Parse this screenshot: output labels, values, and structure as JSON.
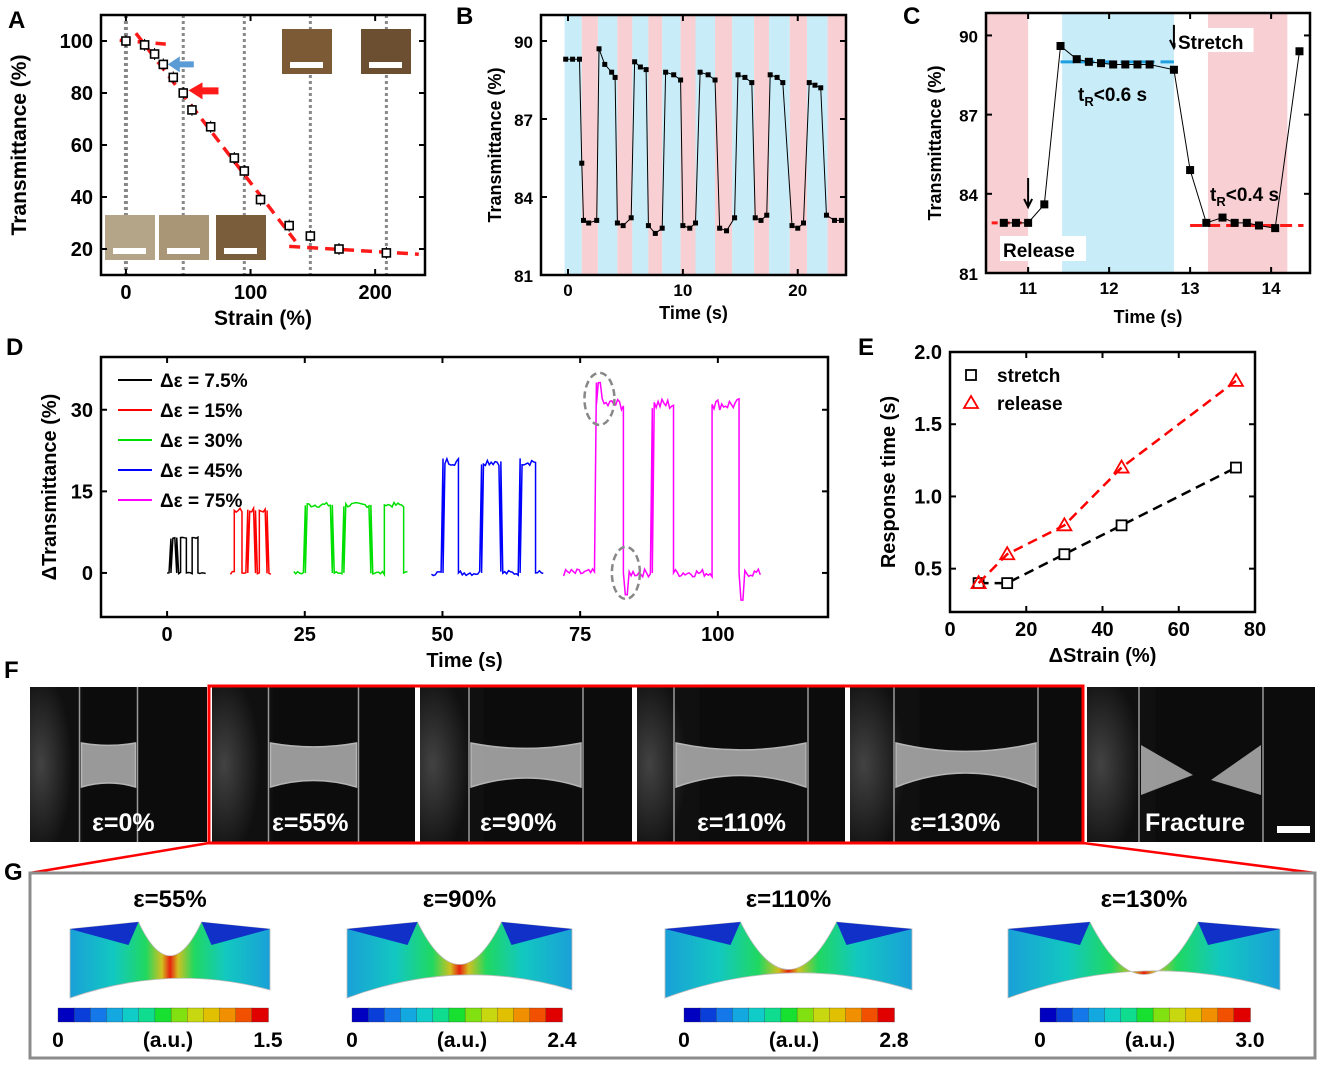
{
  "colors": {
    "red": "#ff1a1a",
    "blue_band": "#c8ecf8",
    "pink_band": "#f8cfd2",
    "magenta": "#ff00ff",
    "green": "#00e000",
    "blue": "#0000ff",
    "gray_frame": "#8c8c8c",
    "arrow_blue": "#5b9bd5"
  },
  "chart_data": [
    {
      "panel": "A",
      "type": "scatter",
      "xlabel": "Strain (%)",
      "ylabel": "Transmittance (%)",
      "xlim": [
        -20,
        240
      ],
      "ylim": [
        10,
        110
      ],
      "xticks": [
        0,
        100,
        200
      ],
      "yticks": [
        20,
        40,
        60,
        80,
        100
      ],
      "points": [
        [
          0,
          100
        ],
        [
          15,
          98.5
        ],
        [
          23,
          95
        ],
        [
          30,
          91
        ],
        [
          38,
          86
        ],
        [
          46,
          80
        ],
        [
          53,
          73.5
        ],
        [
          68,
          67
        ],
        [
          87,
          55
        ],
        [
          95,
          50
        ],
        [
          108,
          39
        ],
        [
          131,
          29
        ],
        [
          148,
          25
        ],
        [
          171,
          20
        ],
        [
          209,
          18.5
        ]
      ],
      "fit_lines": [
        [
          [
            -5,
            100.3
          ],
          [
            32,
            98.8
          ]
        ],
        [
          [
            8,
            103
          ],
          [
            136,
            23
          ]
        ],
        [
          [
            131,
            21
          ],
          [
            235,
            18
          ]
        ]
      ],
      "photo_strains": [
        0,
        46,
        95,
        148,
        209
      ]
    },
    {
      "panel": "B",
      "type": "line",
      "xlabel": "Time (s)",
      "ylabel": "Transmittance (%)",
      "xlim": [
        -2.35,
        24.2
      ],
      "ylim": [
        81,
        91
      ],
      "xticks": [
        0,
        10,
        20
      ],
      "yticks": [
        81,
        84,
        87,
        90
      ],
      "bands": [
        [
          -0.3,
          1.2,
          "blue"
        ],
        [
          1.2,
          2.6,
          "pink"
        ],
        [
          2.6,
          4.3,
          "blue"
        ],
        [
          4.3,
          5.6,
          "pink"
        ],
        [
          5.6,
          7.0,
          "blue"
        ],
        [
          7.0,
          8.2,
          "pink"
        ],
        [
          8.2,
          9.8,
          "blue"
        ],
        [
          9.8,
          11.1,
          "pink"
        ],
        [
          11.1,
          12.8,
          "blue"
        ],
        [
          12.8,
          14.3,
          "pink"
        ],
        [
          14.3,
          16.2,
          "blue"
        ],
        [
          16.2,
          17.5,
          "pink"
        ],
        [
          17.5,
          19.3,
          "blue"
        ],
        [
          19.3,
          20.8,
          "pink"
        ],
        [
          20.8,
          22.6,
          "blue"
        ],
        [
          22.6,
          24.1,
          "pink"
        ]
      ],
      "points": [
        [
          -0.2,
          89.3
        ],
        [
          0.4,
          89.3
        ],
        [
          1.0,
          89.3
        ],
        [
          1.2,
          85.3
        ],
        [
          1.35,
          83.1
        ],
        [
          1.8,
          83.0
        ],
        [
          2.5,
          83.1
        ],
        [
          2.7,
          89.7
        ],
        [
          3.2,
          89.1
        ],
        [
          3.8,
          88.8
        ],
        [
          4.1,
          88.6
        ],
        [
          4.3,
          83.0
        ],
        [
          4.8,
          82.9
        ],
        [
          5.5,
          83.2
        ],
        [
          5.8,
          89.2
        ],
        [
          6.3,
          89.0
        ],
        [
          6.8,
          88.9
        ],
        [
          7.0,
          82.9
        ],
        [
          7.6,
          82.6
        ],
        [
          8.2,
          82.8
        ],
        [
          8.5,
          88.8
        ],
        [
          9.2,
          88.7
        ],
        [
          9.8,
          88.5
        ],
        [
          10.0,
          82.9
        ],
        [
          10.6,
          82.8
        ],
        [
          11.1,
          83.0
        ],
        [
          11.5,
          88.8
        ],
        [
          12.2,
          88.7
        ],
        [
          12.8,
          88.5
        ],
        [
          13.2,
          82.8
        ],
        [
          13.8,
          82.7
        ],
        [
          14.5,
          83.2
        ],
        [
          14.8,
          88.7
        ],
        [
          15.4,
          88.6
        ],
        [
          16.0,
          88.4
        ],
        [
          16.3,
          83.2
        ],
        [
          16.8,
          83.1
        ],
        [
          17.3,
          83.3
        ],
        [
          17.6,
          88.7
        ],
        [
          18.2,
          88.6
        ],
        [
          18.7,
          88.4
        ],
        [
          19.5,
          82.9
        ],
        [
          20.0,
          82.8
        ],
        [
          20.5,
          83.0
        ],
        [
          21.0,
          88.4
        ],
        [
          21.5,
          88.3
        ],
        [
          22.0,
          88.2
        ],
        [
          22.5,
          83.3
        ],
        [
          23.2,
          83.1
        ],
        [
          23.8,
          83.1
        ]
      ]
    },
    {
      "panel": "C",
      "type": "line",
      "xlabel": "Time (s)",
      "ylabel": "Transmittance (%)",
      "xlim": [
        10.48,
        14.48
      ],
      "ylim": [
        81,
        90.85
      ],
      "xticks": [
        11,
        12,
        13,
        14
      ],
      "yticks": [
        81,
        84,
        87,
        90
      ],
      "bands": [
        [
          10.48,
          11.0,
          "pink"
        ],
        [
          11.42,
          12.8,
          "blue"
        ],
        [
          13.22,
          14.2,
          "pink"
        ]
      ],
      "points": [
        [
          10.7,
          82.9
        ],
        [
          10.85,
          82.9
        ],
        [
          11.0,
          82.9
        ],
        [
          11.2,
          83.6
        ],
        [
          11.4,
          89.6
        ],
        [
          11.6,
          89.1
        ],
        [
          11.75,
          89.0
        ],
        [
          11.9,
          88.95
        ],
        [
          12.05,
          88.9
        ],
        [
          12.2,
          88.9
        ],
        [
          12.35,
          88.9
        ],
        [
          12.5,
          88.9
        ],
        [
          12.8,
          88.7
        ],
        [
          13.0,
          84.9
        ],
        [
          13.2,
          82.9
        ],
        [
          13.4,
          83.1
        ],
        [
          13.55,
          82.9
        ],
        [
          13.7,
          82.9
        ],
        [
          13.85,
          82.8
        ],
        [
          14.05,
          82.7
        ],
        [
          14.35,
          89.4
        ]
      ],
      "annotations": {
        "stretch": "Stretch",
        "release": "Release",
        "t_stretch": {
          "t": "t",
          "sub": "R",
          "rest": "<0.6 s"
        },
        "t_release": {
          "t": "t",
          "sub": "R",
          "rest": "<0.4 s"
        }
      }
    },
    {
      "panel": "D",
      "type": "line",
      "xlabel": "Time (s)",
      "ylabel": "ΔTransmittance (%)",
      "xlim": [
        -12,
        120
      ],
      "ylim": [
        -8.1,
        39.7
      ],
      "xticks": [
        0,
        25,
        50,
        75,
        100
      ],
      "yticks": [
        0,
        15,
        30
      ],
      "series": [
        {
          "name": "Δε = 7.5%",
          "color": "#000000",
          "range": [
            0,
            7
          ],
          "amplitude": 6.5,
          "pulses": [
            [
              0.6,
              1.6
            ],
            [
              2.6,
              3.6
            ],
            [
              4.6,
              5.6
            ]
          ]
        },
        {
          "name": "Δε = 15%",
          "color": "#ff0000",
          "range": [
            11.5,
            19
          ],
          "amplitude": 11.5,
          "pulses": [
            [
              12.3,
              13.6
            ],
            [
              14.6,
              15.9
            ],
            [
              16.8,
              18.1
            ]
          ]
        },
        {
          "name": "Δε = 30%",
          "color": "#00e000",
          "range": [
            23,
            44
          ],
          "amplitude": 12.5,
          "pulses": [
            [
              25,
              30
            ],
            [
              32,
              37
            ],
            [
              39.5,
              43
            ]
          ]
        },
        {
          "name": "Δε = 45%",
          "color": "#0000ff",
          "range": [
            48,
            68.5
          ],
          "amplitude": 20.5,
          "pulses": [
            [
              50,
              53
            ],
            [
              57,
              60.5
            ],
            [
              64,
              67
            ]
          ]
        },
        {
          "name": "Δε = 75%",
          "color": "#ff00ff",
          "range": [
            72,
            108
          ],
          "amplitude": 31,
          "pulses": [
            [
              78,
              83
            ],
            [
              88,
              92
            ],
            [
              99,
              104
            ]
          ]
        }
      ]
    },
    {
      "panel": "E",
      "type": "scatter",
      "xlabel": "ΔStrain (%)",
      "ylabel": "Response time (s)",
      "xlim": [
        0,
        80
      ],
      "ylim": [
        0.2,
        2.0
      ],
      "xticks": [
        0,
        20,
        40,
        60,
        80
      ],
      "yticks": [
        0.5,
        1.0,
        1.5,
        2.0
      ],
      "ytick_labels": [
        "0.5",
        "1.0",
        "1.5",
        "2.0"
      ],
      "legend_position": "top-left",
      "series": [
        {
          "name": "stretch",
          "marker": "square",
          "color": "#000000",
          "x": [
            7.5,
            15,
            30,
            45,
            75
          ],
          "y": [
            0.4,
            0.4,
            0.6,
            0.8,
            1.2
          ]
        },
        {
          "name": "release",
          "marker": "triangle",
          "color": "#ff0000",
          "x": [
            7.5,
            15,
            30,
            45,
            75
          ],
          "y": [
            0.4,
            0.6,
            0.8,
            1.2,
            1.8
          ]
        }
      ]
    }
  ],
  "panel_F": {
    "letter": "F",
    "frames": [
      "ε=0%",
      "ε=55%",
      "ε=90%",
      "ε=110%",
      "ε=130%",
      "Fracture"
    ]
  },
  "panel_G": {
    "letter": "G",
    "items": [
      {
        "title": "ε=55%",
        "min": "0",
        "unit": "(a.u.)",
        "max": "1.5",
        "strain": 0.55
      },
      {
        "title": "ε=90%",
        "min": "0",
        "unit": "(a.u.)",
        "max": "2.4",
        "strain": 0.9
      },
      {
        "title": "ε=110%",
        "min": "0",
        "unit": "(a.u.)",
        "max": "2.8",
        "strain": 1.1
      },
      {
        "title": "ε=130%",
        "min": "0",
        "unit": "(a.u.)",
        "max": "3.0",
        "strain": 1.3
      }
    ]
  },
  "letters": [
    "A",
    "B",
    "C",
    "D",
    "E"
  ]
}
